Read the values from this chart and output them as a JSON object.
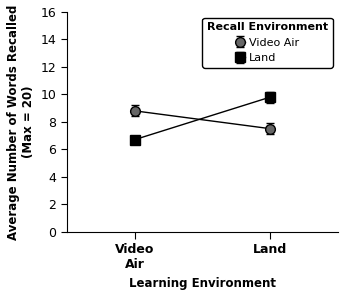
{
  "x_positions": [
    0,
    1
  ],
  "x_tick_labels": [
    "Video\nAir",
    "Land"
  ],
  "xlabel": "Learning Environment",
  "ylabel": "Average Number of Words Recalled\n(Max = 20)",
  "ylim": [
    0,
    16
  ],
  "yticks": [
    0,
    2,
    4,
    6,
    8,
    10,
    12,
    14,
    16
  ],
  "legend_title": "Recall Environment",
  "series": [
    {
      "label": "Video Air",
      "values": [
        8.8,
        7.5
      ],
      "errors": [
        0.4,
        0.4
      ],
      "marker": "o",
      "color": "#000000",
      "markersize": 7,
      "markerfacecolor": "#666666"
    },
    {
      "label": "Land",
      "values": [
        6.7,
        9.8
      ],
      "errors": [
        0.3,
        0.4
      ],
      "marker": "s",
      "color": "#000000",
      "markersize": 7,
      "markerfacecolor": "#000000"
    }
  ],
  "background_color": "#ffffff",
  "plot_bg_color": "#ffffff",
  "axis_label_fontsize": 8.5,
  "tick_fontsize": 9,
  "legend_fontsize": 8
}
